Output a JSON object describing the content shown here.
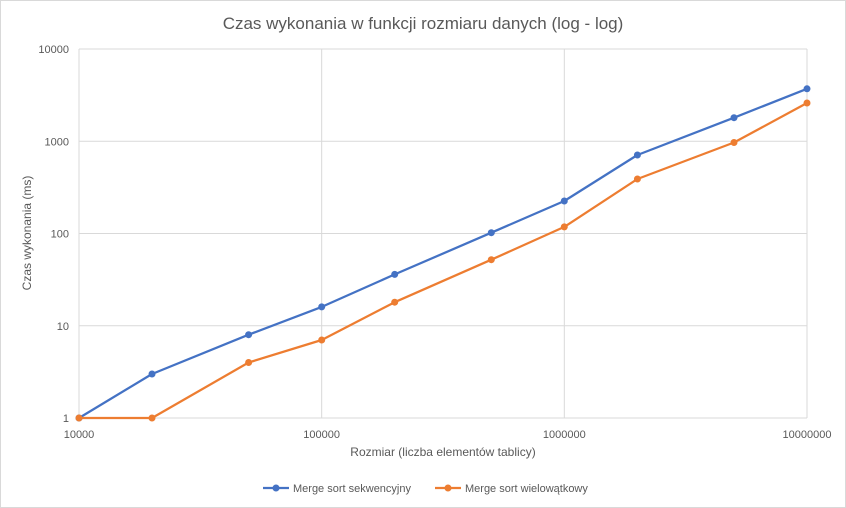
{
  "chart_data": {
    "type": "line",
    "title": "Czas wykonania w funkcji rozmiaru danych (log - log)",
    "xlabel": "Rozmiar (liczba elementów tablicy)",
    "ylabel": "Czas wykonania (ms)",
    "x_scale": "log",
    "y_scale": "log",
    "xlim": [
      10000,
      10000000
    ],
    "ylim": [
      1,
      10000
    ],
    "x_ticks": [
      "10000",
      "100000",
      "1000000",
      "10000000"
    ],
    "y_ticks": [
      "1",
      "10",
      "100",
      "1000",
      "10000"
    ],
    "grid": true,
    "legend_position": "bottom",
    "x": [
      10000,
      20000,
      50000,
      100000,
      200000,
      500000,
      1000000,
      2000000,
      5000000,
      10000000
    ],
    "series": [
      {
        "name": "Merge sort sekwencyjny",
        "color": "#4472c4",
        "values": [
          1,
          3,
          8,
          16,
          36,
          102,
          225,
          710,
          1800,
          3700
        ]
      },
      {
        "name": "Merge sort wielowątkowy",
        "color": "#ed7d31",
        "values": [
          1,
          1,
          4,
          7,
          18,
          52,
          118,
          390,
          970,
          2600
        ]
      }
    ]
  }
}
